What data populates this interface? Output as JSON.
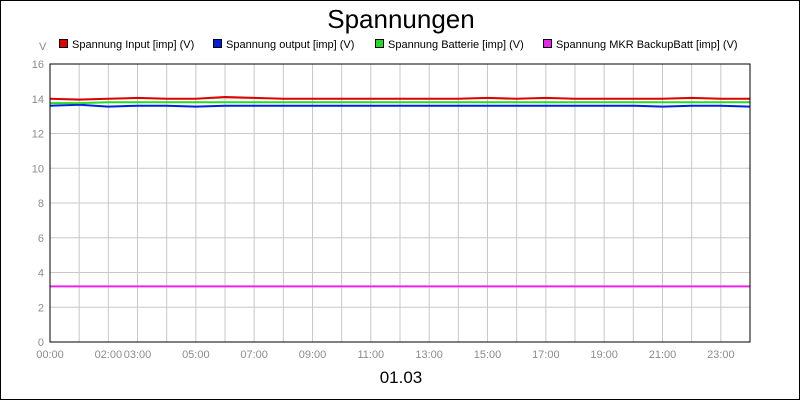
{
  "chart_data": {
    "type": "line",
    "title": "Spannungen",
    "ylabel": "V",
    "xlabel": "01.03",
    "xlim": [
      0,
      24
    ],
    "ylim": [
      0,
      16
    ],
    "y_ticks": [
      0,
      2,
      4,
      6,
      8,
      10,
      12,
      14,
      16
    ],
    "x_ticks": [
      {
        "hour": 0,
        "label": "00:00"
      },
      {
        "hour": 2,
        "label": "02:00"
      },
      {
        "hour": 3,
        "label": "03:00"
      },
      {
        "hour": 5,
        "label": "05:00"
      },
      {
        "hour": 7,
        "label": "07:00"
      },
      {
        "hour": 9,
        "label": "09:00"
      },
      {
        "hour": 11,
        "label": "11:00"
      },
      {
        "hour": 13,
        "label": "13:00"
      },
      {
        "hour": 15,
        "label": "15:00"
      },
      {
        "hour": 17,
        "label": "17:00"
      },
      {
        "hour": 19,
        "label": "19:00"
      },
      {
        "hour": 21,
        "label": "21:00"
      },
      {
        "hour": 23,
        "label": "23:00"
      }
    ],
    "x_gridlines": [
      0,
      1,
      2,
      3,
      4,
      5,
      6,
      7,
      8,
      9,
      10,
      11,
      12,
      13,
      14,
      15,
      16,
      17,
      18,
      19,
      20,
      21,
      22,
      23,
      24
    ],
    "grid": true,
    "legend_position": "top",
    "x": [
      0,
      1,
      2,
      3,
      4,
      5,
      6,
      7,
      8,
      9,
      10,
      11,
      12,
      13,
      14,
      15,
      16,
      17,
      18,
      19,
      20,
      21,
      22,
      23,
      24
    ],
    "series": [
      {
        "name": "Spannung Input [imp] (V)",
        "color": "#e00000",
        "values": [
          14.0,
          13.95,
          14.0,
          14.05,
          14.0,
          14.0,
          14.1,
          14.05,
          14.0,
          14.0,
          14.0,
          14.0,
          14.0,
          14.0,
          14.0,
          14.05,
          14.0,
          14.05,
          14.0,
          14.0,
          14.0,
          14.0,
          14.05,
          14.0,
          14.0
        ]
      },
      {
        "name": "Spannung output [imp] (V)",
        "color": "#0020e0",
        "values": [
          13.6,
          13.65,
          13.55,
          13.6,
          13.6,
          13.55,
          13.6,
          13.6,
          13.6,
          13.6,
          13.6,
          13.6,
          13.6,
          13.6,
          13.6,
          13.6,
          13.6,
          13.6,
          13.6,
          13.6,
          13.6,
          13.55,
          13.6,
          13.6,
          13.55
        ]
      },
      {
        "name": "Spannung Batterie [imp] (V)",
        "color": "#22dd22",
        "values": [
          13.75,
          13.75,
          13.8,
          13.8,
          13.8,
          13.8,
          13.8,
          13.8,
          13.8,
          13.8,
          13.8,
          13.8,
          13.8,
          13.8,
          13.8,
          13.8,
          13.8,
          13.8,
          13.8,
          13.8,
          13.8,
          13.8,
          13.8,
          13.8,
          13.8
        ]
      },
      {
        "name": "Spannung MKR BackupBatt [imp] (V)",
        "color": "#ee22ee",
        "values": [
          3.2,
          3.2,
          3.2,
          3.2,
          3.2,
          3.2,
          3.2,
          3.2,
          3.2,
          3.2,
          3.2,
          3.2,
          3.2,
          3.2,
          3.2,
          3.2,
          3.2,
          3.2,
          3.2,
          3.2,
          3.2,
          3.2,
          3.2,
          3.2,
          3.2
        ]
      }
    ]
  }
}
